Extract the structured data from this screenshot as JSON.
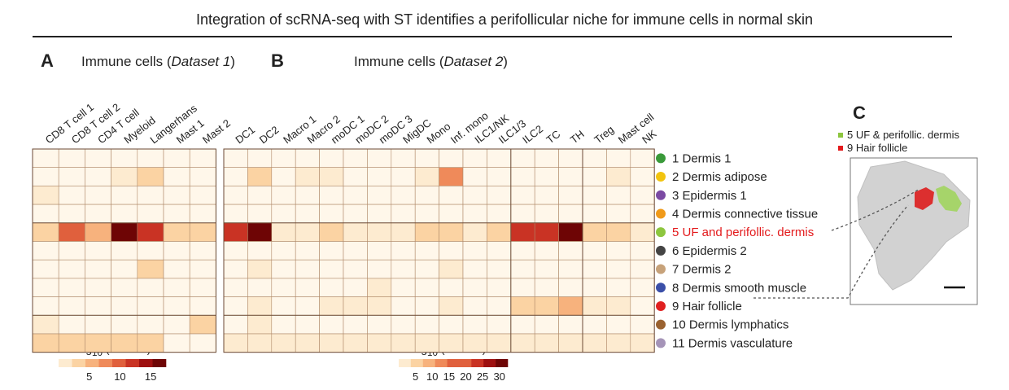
{
  "title": "Integration of scRNA-seq with ST identifies a perifollicular niche for immune cells in normal skin",
  "panel_a": {
    "letter": "A",
    "title_prefix": "Immune cells (",
    "title_italic": "Dataset 1",
    "title_suffix": ")"
  },
  "panel_b": {
    "letter": "B",
    "title_prefix": "Immune cells (",
    "title_italic": "Dataset 2",
    "title_suffix": ")"
  },
  "panel_c": {
    "letter": "C",
    "legend": [
      {
        "label": "5 UF & perifollic. dermis",
        "color": "#8dc63f"
      },
      {
        "label": "9 Hair follicle",
        "color": "#e31a1c"
      }
    ]
  },
  "rows": [
    {
      "label": "1 Dermis 1",
      "color": "#3a9a3a",
      "highlight": false
    },
    {
      "label": "2 Dermis adipose",
      "color": "#f2c40f",
      "highlight": false
    },
    {
      "label": "3 Epidermis 1",
      "color": "#7b4aa3",
      "highlight": false
    },
    {
      "label": "4 Dermis connective tissue",
      "color": "#f09a1a",
      "highlight": false
    },
    {
      "label": "5 UF and perifollic. dermis",
      "color": "#8dc63f",
      "highlight": true
    },
    {
      "label": "6 Epidermis 2",
      "color": "#444444",
      "highlight": false
    },
    {
      "label": "7 Dermis 2",
      "color": "#c7a27a",
      "highlight": false
    },
    {
      "label": "8 Dermis smooth muscle",
      "color": "#3b4fa8",
      "highlight": false
    },
    {
      "label": "9 Hair follicle",
      "color": "#e02020",
      "highlight": false
    },
    {
      "label": "10 Dermis lymphatics",
      "color": "#9a6230",
      "highlight": false
    },
    {
      "label": "11 Dermis vasculature",
      "color": "#a594b8",
      "highlight": false
    }
  ],
  "highlight_color": "#e31a1c",
  "chart_data": [
    {
      "type": "heatmap",
      "title": "Immune cells (Dataset 1)",
      "colorbar_label": "-Log10 (P value)",
      "colorbar_ticks": [
        "5",
        "10",
        "15"
      ],
      "x_categories": [
        "CD8 T cell 1",
        "CD8 T cell 2",
        "CD4 T cell",
        "Myeloid",
        "Langerhans",
        "Mast 1",
        "Mast 2"
      ],
      "y_categories": [
        "1 Dermis 1",
        "2 Dermis adipose",
        "3 Epidermis 1",
        "4 Dermis connective tissue",
        "5 UF and perifollic. dermis",
        "6 Epidermis 2",
        "7 Dermis 2",
        "8 Dermis smooth muscle",
        "9 Hair follicle",
        "10 Dermis lymphatics",
        "11 Dermis vasculature"
      ],
      "values": [
        [
          0,
          0,
          0,
          0,
          0,
          0,
          0
        ],
        [
          0,
          0,
          0,
          2,
          3,
          0,
          0
        ],
        [
          2,
          0,
          0,
          0,
          0,
          0,
          0
        ],
        [
          0,
          0,
          0,
          0,
          0,
          0,
          0
        ],
        [
          4,
          10,
          5,
          17,
          12,
          4,
          3
        ],
        [
          0,
          0,
          0,
          0,
          0,
          0,
          0
        ],
        [
          0,
          0,
          0,
          0,
          4,
          0,
          0
        ],
        [
          0,
          0,
          0,
          0,
          0,
          0,
          0
        ],
        [
          0,
          0,
          0,
          0,
          0,
          0,
          0
        ],
        [
          2,
          0,
          0,
          0,
          0,
          0,
          3
        ],
        [
          4,
          4,
          4,
          3,
          3,
          0,
          0
        ]
      ]
    },
    {
      "type": "heatmap",
      "title": "Immune cells (Dataset 2)",
      "colorbar_label": "-Log10 (P value)",
      "colorbar_ticks": [
        "5",
        "10",
        "15",
        "20",
        "25",
        "30"
      ],
      "x_categories": [
        "DC1",
        "DC2",
        "Macro 1",
        "Macro 2",
        "moDC 1",
        "moDC 2",
        "moDC 3",
        "MigDC",
        "Mono",
        "Inf. mono",
        "ILC1/NK",
        "ILC1/3",
        "ILC2",
        "TC",
        "TH",
        "Treg",
        "Mast cell",
        "NK"
      ],
      "y_categories": [
        "1 Dermis 1",
        "2 Dermis adipose",
        "3 Epidermis 1",
        "4 Dermis connective tissue",
        "5 UF and perifollic. dermis",
        "6 Epidermis 2",
        "7 Dermis 2",
        "8 Dermis smooth muscle",
        "9 Hair follicle",
        "10 Dermis lymphatics",
        "11 Dermis vasculature"
      ],
      "values": [
        [
          0,
          0,
          0,
          0,
          0,
          0,
          0,
          0,
          0,
          0,
          0,
          0,
          0,
          0,
          0,
          0,
          0,
          0
        ],
        [
          0,
          6,
          0,
          3,
          3,
          0,
          0,
          0,
          3,
          15,
          0,
          0,
          0,
          0,
          0,
          0,
          3,
          0
        ],
        [
          0,
          0,
          0,
          0,
          0,
          0,
          0,
          0,
          0,
          0,
          0,
          0,
          0,
          0,
          0,
          0,
          0,
          0
        ],
        [
          0,
          0,
          0,
          0,
          0,
          0,
          0,
          0,
          0,
          0,
          0,
          0,
          0,
          0,
          0,
          0,
          0,
          0
        ],
        [
          24,
          33,
          4,
          4,
          8,
          4,
          4,
          4,
          8,
          5,
          4,
          6,
          24,
          24,
          33,
          5,
          8,
          4
        ],
        [
          0,
          0,
          0,
          0,
          0,
          0,
          0,
          0,
          0,
          0,
          0,
          0,
          0,
          0,
          0,
          0,
          0,
          0
        ],
        [
          0,
          4,
          0,
          0,
          0,
          0,
          0,
          0,
          0,
          4,
          0,
          0,
          0,
          0,
          0,
          0,
          0,
          0
        ],
        [
          0,
          0,
          0,
          0,
          0,
          0,
          3,
          0,
          0,
          0,
          0,
          0,
          0,
          0,
          0,
          0,
          0,
          0
        ],
        [
          0,
          4,
          0,
          0,
          3,
          3,
          3,
          0,
          0,
          3,
          0,
          0,
          6,
          6,
          12,
          3,
          3,
          0
        ],
        [
          0,
          3,
          0,
          0,
          0,
          0,
          0,
          0,
          0,
          0,
          0,
          0,
          0,
          0,
          0,
          0,
          0,
          0
        ],
        [
          3,
          4,
          3,
          3,
          4,
          4,
          4,
          3,
          3,
          4,
          3,
          3,
          3,
          3,
          4,
          3,
          3,
          3
        ]
      ]
    }
  ]
}
